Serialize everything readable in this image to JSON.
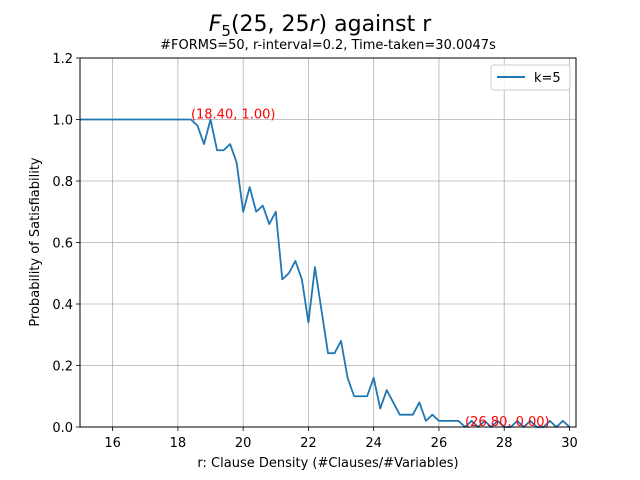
{
  "chart_data": {
    "type": "line",
    "title": "F5(25, 25r) against r",
    "title_parts": {
      "main": "F",
      "subscript": "5",
      "args": "(25, 25",
      "italic": "r",
      "close": ")",
      "rest": " against r"
    },
    "subtitle": "#FORMS=50, r-interval=0.2, Time-taken=30.0047s",
    "xlabel": "r: Clause Density (#Clauses/#Variables)",
    "ylabel": "Probability of Satisfiability",
    "xlim": [
      15,
      30.2
    ],
    "ylim": [
      0,
      1.2
    ],
    "xticks": [
      "16",
      "18",
      "20",
      "22",
      "24",
      "26",
      "28",
      "30"
    ],
    "yticks": [
      "0.0",
      "0.2",
      "0.4",
      "0.6",
      "0.8",
      "1.0",
      "1.2"
    ],
    "grid": true,
    "legend_position": "top-right",
    "series": [
      {
        "name": "k=5",
        "color": "#1f77b4",
        "x": [
          15.0,
          15.2,
          15.4,
          15.6,
          15.8,
          16.0,
          16.2,
          16.4,
          16.6,
          16.8,
          17.0,
          17.2,
          17.4,
          17.6,
          17.8,
          18.0,
          18.2,
          18.4,
          18.6,
          18.8,
          19.0,
          19.2,
          19.4,
          19.6,
          19.8,
          20.0,
          20.2,
          20.4,
          20.6,
          20.8,
          21.0,
          21.2,
          21.4,
          21.6,
          21.8,
          22.0,
          22.2,
          22.4,
          22.6,
          22.8,
          23.0,
          23.2,
          23.4,
          23.6,
          23.8,
          24.0,
          24.2,
          24.4,
          24.6,
          24.8,
          25.0,
          25.2,
          25.4,
          25.6,
          25.8,
          26.0,
          26.2,
          26.4,
          26.6,
          26.8,
          27.0,
          27.2,
          27.4,
          27.6,
          27.8,
          28.0,
          28.2,
          28.4,
          28.6,
          28.8,
          29.0,
          29.2,
          29.4,
          29.6,
          29.8,
          30.0
        ],
        "y": [
          1.0,
          1.0,
          1.0,
          1.0,
          1.0,
          1.0,
          1.0,
          1.0,
          1.0,
          1.0,
          1.0,
          1.0,
          1.0,
          1.0,
          1.0,
          1.0,
          1.0,
          1.0,
          0.98,
          0.92,
          1.0,
          0.9,
          0.9,
          0.92,
          0.86,
          0.7,
          0.78,
          0.7,
          0.72,
          0.66,
          0.7,
          0.48,
          0.5,
          0.54,
          0.48,
          0.34,
          0.52,
          0.38,
          0.24,
          0.24,
          0.28,
          0.16,
          0.1,
          0.1,
          0.1,
          0.16,
          0.06,
          0.12,
          0.08,
          0.04,
          0.04,
          0.04,
          0.08,
          0.02,
          0.04,
          0.02,
          0.02,
          0.02,
          0.02,
          0.0,
          0.02,
          0.0,
          0.02,
          0.0,
          0.02,
          0.0,
          0.0,
          0.02,
          0.0,
          0.02,
          0.0,
          0.0,
          0.02,
          0.0,
          0.02,
          0.0
        ]
      }
    ],
    "annotations": [
      {
        "text": "(18.40, 1.00)",
        "x": 18.4,
        "y": 1.0,
        "color": "#ff0000"
      },
      {
        "text": "(26.80, 0.00)",
        "x": 26.8,
        "y": 0.0,
        "color": "#ff0000"
      }
    ]
  }
}
